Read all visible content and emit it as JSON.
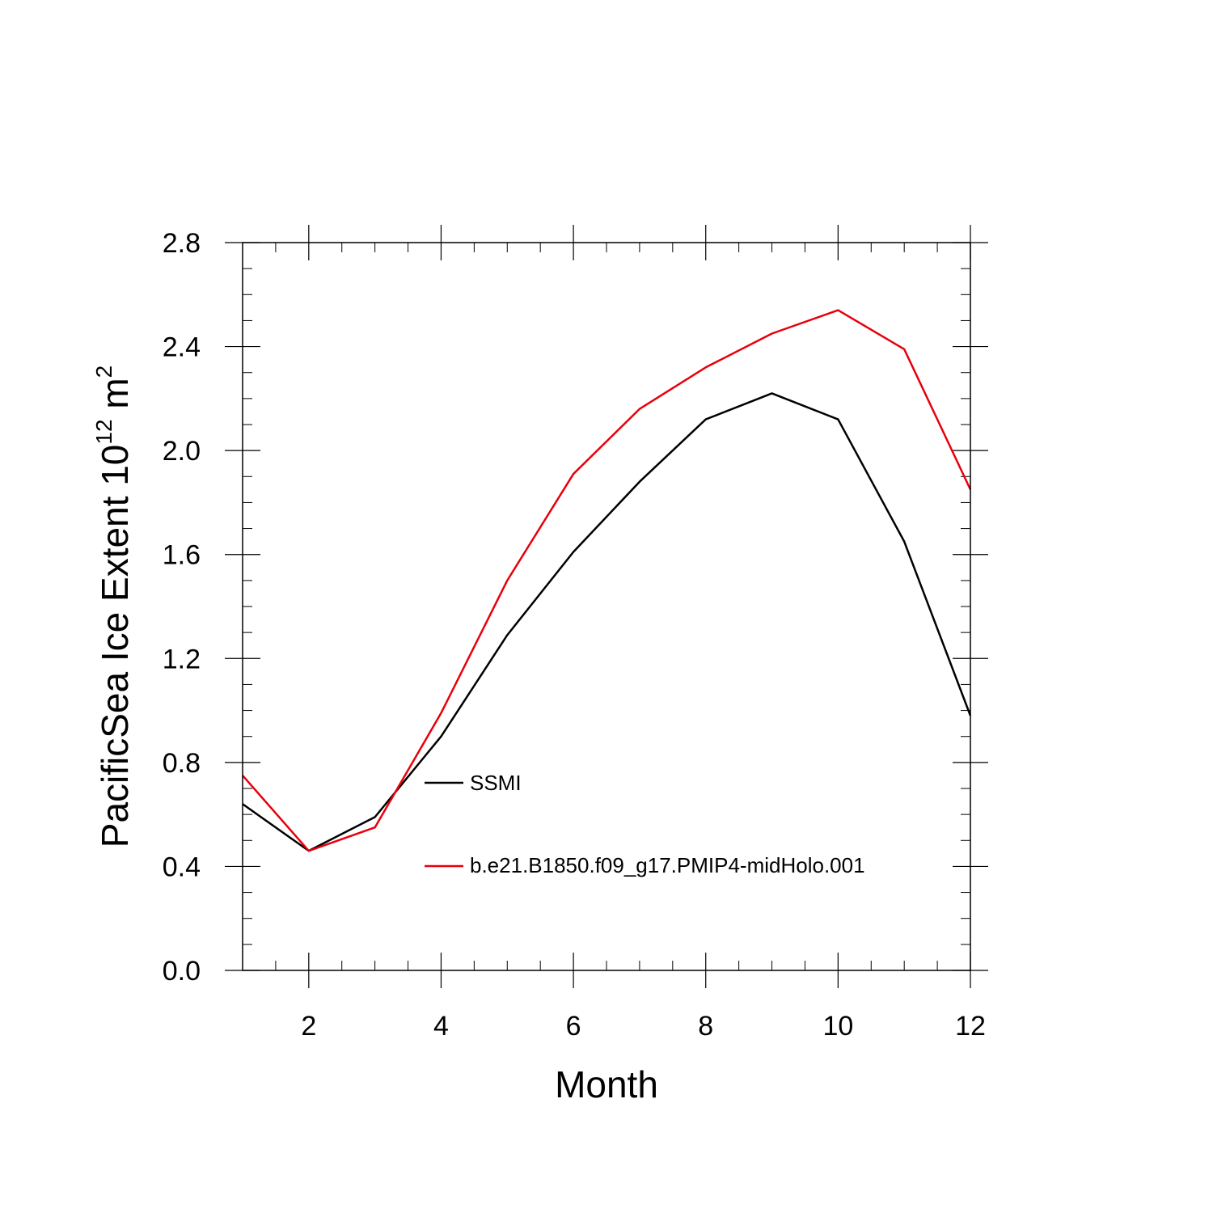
{
  "chart_data": {
    "type": "line",
    "title": "",
    "xlabel": "Month",
    "ylabel": {
      "main": "PacificSea Ice Extent 10",
      "exponent": "12",
      "unit": " m",
      "unit_exponent": "2"
    },
    "xlim": [
      1,
      12
    ],
    "ylim": [
      0.0,
      2.8
    ],
    "x_ticks": [
      2,
      4,
      6,
      8,
      10,
      12
    ],
    "x_tick_labels": [
      "2",
      "4",
      "6",
      "8",
      "10",
      "12"
    ],
    "y_ticks": [
      0.0,
      0.4,
      0.8,
      1.2,
      1.6,
      2.0,
      2.4,
      2.8
    ],
    "y_tick_labels": [
      "0.0",
      "0.4",
      "0.8",
      "1.2",
      "1.6",
      "2.0",
      "2.4",
      "2.8"
    ],
    "x": [
      1,
      2,
      3,
      4,
      5,
      6,
      7,
      8,
      9,
      10,
      11,
      12
    ],
    "series": [
      {
        "name": "SSMI",
        "color": "#000000",
        "values": [
          0.64,
          0.46,
          0.59,
          0.9,
          1.29,
          1.61,
          1.88,
          2.12,
          2.22,
          2.12,
          1.65,
          0.98
        ]
      },
      {
        "name": "b.e21.B1850.f09_g17.PMIP4-midHolo.001",
        "color": "#e8000b",
        "values": [
          0.75,
          0.46,
          0.55,
          0.99,
          1.5,
          1.91,
          2.16,
          2.32,
          2.45,
          2.54,
          2.39,
          1.85
        ]
      }
    ],
    "grid": false,
    "legend_position": "inside-center"
  }
}
